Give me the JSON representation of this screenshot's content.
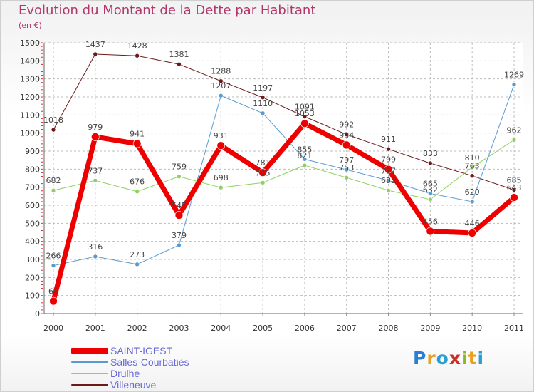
{
  "title": "Evolution du Montant de la Dette par Habitant",
  "unit": "(en €)",
  "logo": {
    "letters": [
      "P",
      "r",
      "o",
      "x",
      "i",
      "t",
      "i"
    ],
    "colors": [
      "#2a7fd4",
      "#e8a020",
      "#2a9fd4",
      "#c8302a",
      "#8ab82a",
      "#e8a020",
      "#2a9fd4"
    ]
  },
  "chart_data": {
    "type": "line",
    "x": [
      "2000",
      "2001",
      "2002",
      "2003",
      "2004",
      "2005",
      "2006",
      "2007",
      "2008",
      "2009",
      "2010",
      "2011"
    ],
    "ylim": [
      0,
      1500
    ],
    "yticks": [
      0,
      100,
      200,
      300,
      400,
      500,
      600,
      700,
      800,
      900,
      1000,
      1100,
      1200,
      1300,
      1400,
      1500
    ],
    "grid": true,
    "legend_position": "bottom-left",
    "series": [
      {
        "name": "Villeneuve",
        "color": "#6b1a1a",
        "width": 1,
        "values": [
          1018,
          1437,
          1428,
          1381,
          1288,
          1197,
          1091,
          992,
          911,
          833,
          763,
          685
        ]
      },
      {
        "name": "Drulhe",
        "color": "#90d060",
        "width": 1,
        "values": [
          682,
          737,
          676,
          759,
          698,
          725,
          821,
          753,
          682,
          632,
          810,
          962
        ]
      },
      {
        "name": "Salles-Courbatiès",
        "color": "#5a9ad0",
        "width": 1,
        "values": [
          266,
          316,
          273,
          379,
          1207,
          1110,
          855,
          797,
          737,
          665,
          620,
          1269
        ]
      },
      {
        "name": "SAINT-IGEST",
        "color": "#ee0000",
        "width": 7,
        "values": [
          69,
          979,
          941,
          545,
          931,
          781,
          1053,
          934,
          799,
          456,
          446,
          643
        ]
      }
    ]
  }
}
